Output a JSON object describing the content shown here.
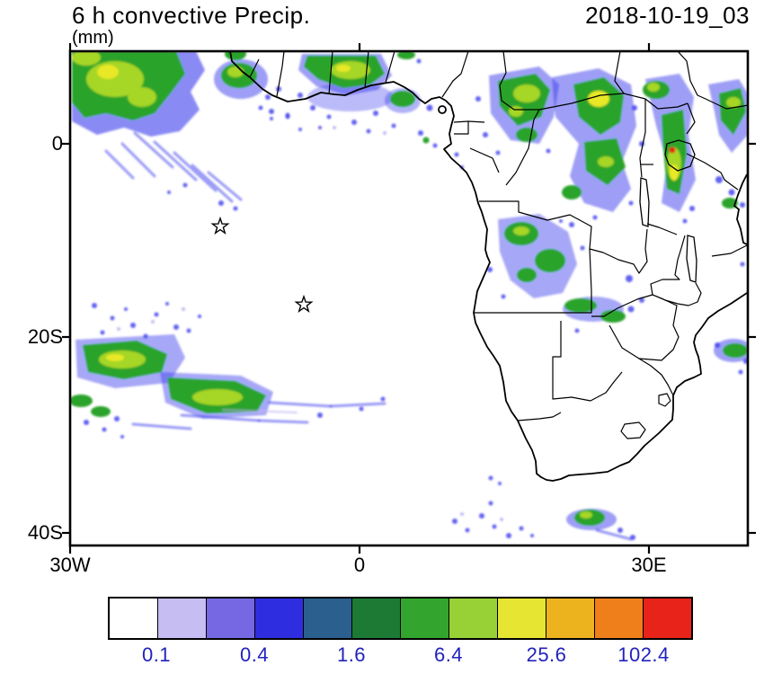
{
  "header": {
    "title": "6 h convective Precip.",
    "units": "(mm)",
    "date": "2018-10-19_03"
  },
  "map": {
    "y_axis_labels": [
      "0",
      "20S",
      "40S"
    ],
    "x_axis_labels": [
      "30W",
      "0",
      "30E"
    ]
  },
  "colorbar": {
    "colors": [
      "#ffffff",
      "#c6bdf2",
      "#7668e2",
      "#2e2ee0",
      "#2b5f8e",
      "#1d7a34",
      "#33a52f",
      "#97d136",
      "#e5e532",
      "#edb31f",
      "#ef7f1a",
      "#e8231a"
    ],
    "tick_labels": [
      "0.1",
      "0.4",
      "1.6",
      "6.4",
      "25.6",
      "102.4"
    ]
  }
}
